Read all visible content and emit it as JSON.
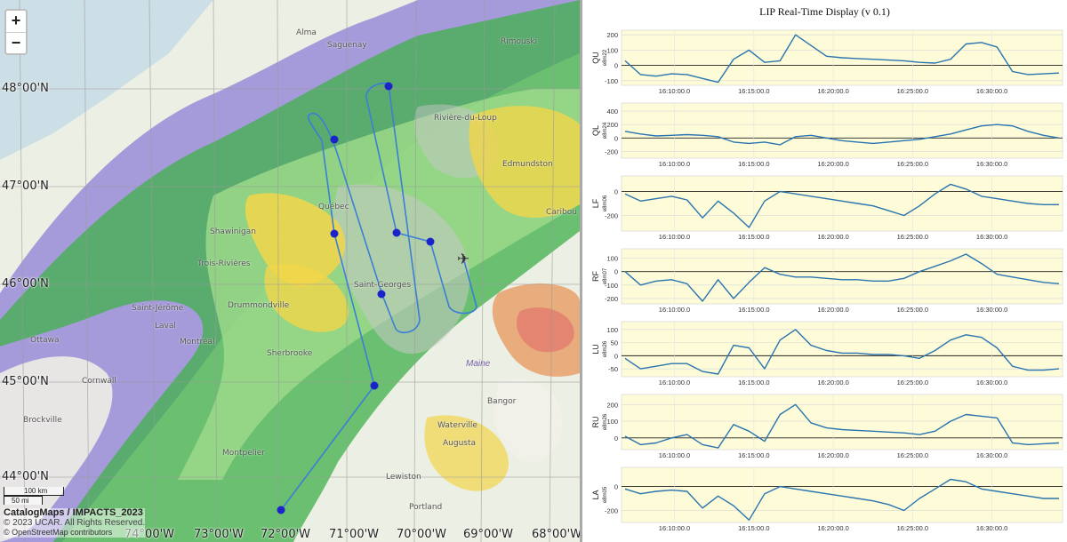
{
  "map": {
    "zoom_in": "+",
    "zoom_out": "−",
    "lat_labels": [
      "48°00'N",
      "47°00'N",
      "46°00'N",
      "45°00'N",
      "44°00'N"
    ],
    "lon_labels": [
      "74°00'W",
      "73°00'W",
      "72°00'W",
      "71°00'W",
      "70°00'W",
      "69°00'W",
      "68°00'W"
    ],
    "cities": [
      "Alma",
      "Saguenay",
      "Rimouski",
      "Rivière-du-Loup",
      "Edmundston",
      "Québec",
      "Shawinigan",
      "Trois-Rivières",
      "Saint-Georges",
      "Drummondville",
      "Saint-Jérôme",
      "Laval",
      "Montréal",
      "Sherbrooke",
      "Ottawa",
      "Cornwall",
      "Brockville",
      "Lewiston",
      "Bangor",
      "Augusta",
      "Waterville",
      "Montpelier",
      "Portland",
      "Caribou"
    ],
    "state_label": "Maine",
    "scale_km": "100 km",
    "scale_mi": "50 mi",
    "credit_title": "CatalogMaps / IMPACTS_2023",
    "credit_copyright": "© 2023 UCAR. All Rights Reserved.",
    "credit_osm": "© OpenStreetMap contributors",
    "plane_icon": "airplane-icon",
    "track_color": "#3a7fd6",
    "waypoint_color": "#1a24c8"
  },
  "panel": {
    "title": "LIP Real-Time Display (v 0.1)"
  },
  "chart_data": [
    {
      "type": "line",
      "name": "QU",
      "unit": "e8m22",
      "yticks": [
        200,
        100,
        0,
        -100
      ],
      "ylim": [
        -130,
        230
      ],
      "x_ticks": [
        "16:10:00.0",
        "16:15:00.0",
        "16:20:00.0",
        "16:25:00.0",
        "16:30:00.0"
      ],
      "x": [
        0,
        1,
        2,
        3,
        4,
        5,
        6,
        7,
        8,
        9,
        10,
        11,
        12,
        13,
        14,
        15,
        16,
        17,
        18,
        19,
        20,
        21,
        22,
        23,
        24,
        25,
        26,
        27,
        28
      ],
      "values": [
        30,
        -60,
        -70,
        -55,
        -60,
        -85,
        -110,
        40,
        100,
        20,
        30,
        200,
        130,
        60,
        50,
        45,
        40,
        35,
        30,
        20,
        15,
        40,
        140,
        150,
        120,
        -40,
        -60,
        -55,
        -50
      ]
    },
    {
      "type": "line",
      "name": "QL",
      "unit": "e8m24",
      "yticks": [
        400,
        200,
        0,
        -200
      ],
      "ylim": [
        -300,
        520
      ],
      "x_ticks": [
        "16:10:00.0",
        "16:15:00.0",
        "16:20:00.0",
        "16:25:00.0",
        "16:30:00.0"
      ],
      "x": [
        0,
        1,
        2,
        3,
        4,
        5,
        6,
        7,
        8,
        9,
        10,
        11,
        12,
        13,
        14,
        15,
        16,
        17,
        18,
        19,
        20,
        21,
        22,
        23,
        24,
        25,
        26,
        27,
        28
      ],
      "values": [
        100,
        60,
        30,
        40,
        50,
        40,
        20,
        -60,
        -80,
        -60,
        -100,
        20,
        40,
        0,
        -40,
        -60,
        -80,
        -60,
        -40,
        -20,
        20,
        60,
        120,
        180,
        200,
        180,
        100,
        40,
        0
      ]
    },
    {
      "type": "line",
      "name": "LF",
      "unit": "e8m06",
      "yticks": [
        0,
        -200
      ],
      "ylim": [
        -330,
        130
      ],
      "x_ticks": [
        "16:10:00.0",
        "16:15:00.0",
        "16:20:00.0",
        "16:25:00.0",
        "16:30:00.0"
      ],
      "x": [
        0,
        1,
        2,
        3,
        4,
        5,
        6,
        7,
        8,
        9,
        10,
        11,
        12,
        13,
        14,
        15,
        16,
        17,
        18,
        19,
        20,
        21,
        22,
        23,
        24,
        25,
        26,
        27,
        28
      ],
      "values": [
        -20,
        -80,
        -60,
        -40,
        -70,
        -220,
        -80,
        -180,
        -300,
        -80,
        0,
        -20,
        -40,
        -60,
        -80,
        -100,
        -120,
        -160,
        -200,
        -120,
        -20,
        60,
        20,
        -40,
        -60,
        -80,
        -100,
        -110,
        -110
      ]
    },
    {
      "type": "line",
      "name": "RF",
      "unit": "e8m07",
      "yticks": [
        100,
        0,
        -100,
        -200
      ],
      "ylim": [
        -240,
        170
      ],
      "x_ticks": [
        "16:10:00.0",
        "16:15:00.0",
        "16:20:00.0",
        "16:25:00.0",
        "16:30:00.0"
      ],
      "x": [
        0,
        1,
        2,
        3,
        4,
        5,
        6,
        7,
        8,
        9,
        10,
        11,
        12,
        13,
        14,
        15,
        16,
        17,
        18,
        19,
        20,
        21,
        22,
        23,
        24,
        25,
        26,
        27,
        28
      ],
      "values": [
        0,
        -100,
        -70,
        -60,
        -90,
        -220,
        -60,
        -200,
        -80,
        30,
        -20,
        -40,
        -40,
        -50,
        -60,
        -60,
        -70,
        -70,
        -50,
        0,
        40,
        80,
        130,
        60,
        -20,
        -40,
        -60,
        -80,
        -90
      ]
    },
    {
      "type": "line",
      "name": "LU",
      "unit": "e8m26",
      "yticks": [
        100,
        50,
        0,
        -50
      ],
      "ylim": [
        -80,
        130
      ],
      "x_ticks": [
        "16:10:00.0",
        "16:15:00.0",
        "16:20:00.0",
        "16:25:00.0",
        "16:30:00.0"
      ],
      "x": [
        0,
        1,
        2,
        3,
        4,
        5,
        6,
        7,
        8,
        9,
        10,
        11,
        12,
        13,
        14,
        15,
        16,
        17,
        18,
        19,
        20,
        21,
        22,
        23,
        24,
        25,
        26,
        27,
        28
      ],
      "values": [
        -10,
        -50,
        -40,
        -30,
        -30,
        -60,
        -70,
        40,
        30,
        -50,
        60,
        100,
        40,
        20,
        10,
        10,
        5,
        5,
        0,
        -10,
        20,
        60,
        80,
        70,
        30,
        -40,
        -55,
        -55,
        -50
      ]
    },
    {
      "type": "line",
      "name": "RU",
      "unit": "e8m26",
      "yticks": [
        200,
        100,
        0
      ],
      "ylim": [
        -70,
        260
      ],
      "x_ticks": [
        "16:10:00.0",
        "16:15:00.0",
        "16:20:00.0",
        "16:25:00.0",
        "16:30:00.0"
      ],
      "x": [
        0,
        1,
        2,
        3,
        4,
        5,
        6,
        7,
        8,
        9,
        10,
        11,
        12,
        13,
        14,
        15,
        16,
        17,
        18,
        19,
        20,
        21,
        22,
        23,
        24,
        25,
        26,
        27,
        28
      ],
      "values": [
        10,
        -40,
        -30,
        0,
        20,
        -40,
        -60,
        80,
        40,
        -20,
        140,
        200,
        90,
        60,
        50,
        45,
        40,
        35,
        30,
        20,
        40,
        100,
        140,
        130,
        120,
        -30,
        -40,
        -35,
        -30
      ]
    },
    {
      "type": "line",
      "name": "LA",
      "unit": "e8m05",
      "yticks": [
        0,
        -200
      ],
      "ylim": [
        -300,
        160
      ],
      "x_ticks": [
        "16:10:00.0",
        "16:15:00.0",
        "16:20:00.0",
        "16:25:00.0",
        "16:30:00.0"
      ],
      "x": [
        0,
        1,
        2,
        3,
        4,
        5,
        6,
        7,
        8,
        9,
        10,
        11,
        12,
        13,
        14,
        15,
        16,
        17,
        18,
        19,
        20,
        21,
        22,
        23,
        24,
        25,
        26,
        27,
        28
      ],
      "values": [
        -20,
        -60,
        -40,
        -30,
        -40,
        -180,
        -80,
        -160,
        -280,
        -60,
        0,
        -20,
        -40,
        -60,
        -80,
        -100,
        -120,
        -150,
        -200,
        -100,
        -20,
        60,
        40,
        -20,
        -40,
        -60,
        -80,
        -100,
        -100
      ]
    }
  ]
}
